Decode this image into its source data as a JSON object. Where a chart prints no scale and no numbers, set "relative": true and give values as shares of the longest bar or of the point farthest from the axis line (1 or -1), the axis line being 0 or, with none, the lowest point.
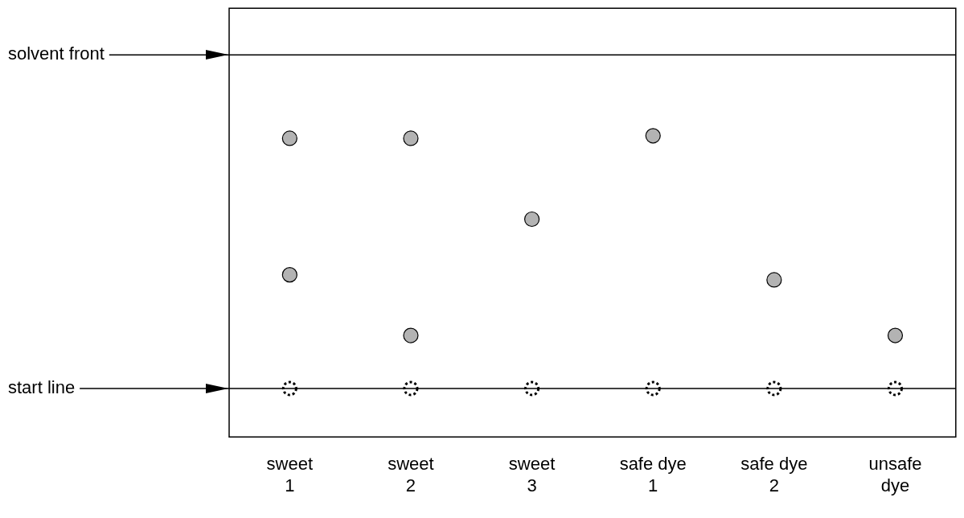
{
  "chart_data": {
    "type": "scatter",
    "relative": true,
    "categories": [
      "sweet 1",
      "sweet 2",
      "sweet 3",
      "safe dye 1",
      "safe dye 2",
      "unsafe dye"
    ],
    "series": [
      {
        "color": "#b3b3b3",
        "values": [
          0.99,
          0.99,
          0.67,
          1,
          0.43,
          0.21
        ]
      },
      {
        "color": "#b3b3b3",
        "values": [
          0.45,
          0.21,
          null,
          null,
          null,
          null
        ]
      },
      {
        "color": "#ffffff",
        "values": [
          0,
          0,
          0,
          0,
          0,
          0
        ],
        "line_style": "dotted"
      }
    ],
    "marker": "circle",
    "grid": false,
    "legend": false,
    "ref_lines": [
      {
        "axis": "y",
        "value": 1.32,
        "label": "solvent front"
      },
      {
        "axis": "y",
        "value": 0,
        "label": "start line"
      }
    ]
  }
}
